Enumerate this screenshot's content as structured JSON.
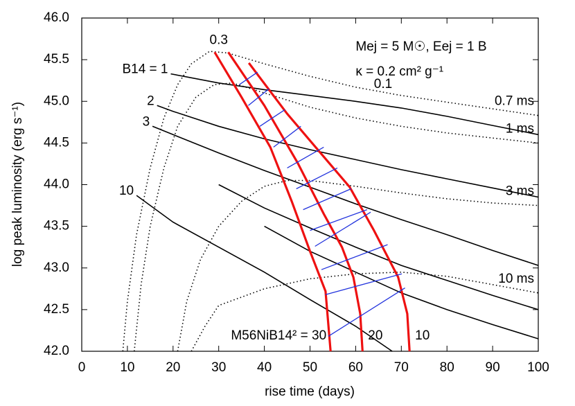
{
  "chart_data": {
    "type": "line",
    "xlabel": "rise time (days)",
    "ylabel": "log peak luminosity (erg s⁻¹)",
    "xlim": [
      0,
      100
    ],
    "ylim": [
      42,
      46
    ],
    "xticks": [
      0,
      10,
      20,
      30,
      40,
      50,
      60,
      70,
      80,
      90,
      100
    ],
    "yticks": [
      {
        "value": 42,
        "label": "42.0"
      },
      42.5,
      {
        "value": 43,
        "label": "43.0"
      },
      43.5,
      {
        "value": 44,
        "label": "44.0"
      },
      44.5,
      {
        "value": 45,
        "label": "45.0"
      },
      45.5,
      {
        "value": 46,
        "label": "46.0"
      }
    ],
    "grid": false,
    "annotations": [
      {
        "text": "Mej = 5 M☉, Eej = 1 B",
        "x": 60,
        "y": 45.65
      },
      {
        "text": "κ = 0.2 cm² g⁻¹",
        "x": 60,
        "y": 45.35
      },
      {
        "text": "0.3",
        "x": 28,
        "y": 45.73
      },
      {
        "text": "0.1",
        "x": 64,
        "y": 45.2
      }
    ],
    "series": [
      {
        "name": "B14 = 1",
        "color": "#000000",
        "style": "solid",
        "x": [
          19.5,
          30,
          40,
          50,
          60,
          70,
          80,
          90,
          100
        ],
        "values": [
          45.33,
          45.22,
          45.14,
          45.07,
          45.0,
          44.92,
          44.82,
          44.71,
          44.6
        ]
      },
      {
        "name": "2",
        "color": "#000000",
        "style": "solid",
        "x": [
          16.5,
          20,
          30,
          40,
          50,
          60,
          70,
          80,
          90,
          100
        ],
        "values": [
          44.95,
          44.88,
          44.7,
          44.55,
          44.42,
          44.3,
          44.18,
          44.07,
          43.96,
          43.85
        ]
      },
      {
        "name": "3",
        "color": "#000000",
        "style": "solid",
        "x": [
          15.5,
          20,
          30,
          40,
          50,
          60,
          70,
          80,
          90,
          100
        ],
        "values": [
          44.7,
          44.6,
          44.38,
          44.17,
          43.97,
          43.77,
          43.58,
          43.4,
          43.21,
          43.03
        ]
      },
      {
        "color": "#000000",
        "style": "solid",
        "x": [
          30,
          40,
          50,
          60,
          70,
          80,
          90,
          100
        ],
        "values": [
          44.0,
          43.72,
          43.48,
          43.25,
          43.03,
          42.85,
          42.67,
          42.5
        ]
      },
      {
        "color": "#000000",
        "style": "solid",
        "x": [
          40,
          50,
          60,
          70,
          80,
          90,
          100
        ],
        "values": [
          43.5,
          43.2,
          42.95,
          42.7,
          42.5,
          42.32,
          42.15
        ]
      },
      {
        "name": "10",
        "color": "#000000",
        "style": "solid",
        "x": [
          12,
          20,
          30,
          40,
          50,
          60,
          68
        ],
        "values": [
          43.87,
          43.55,
          43.25,
          42.95,
          42.62,
          42.3,
          42.0
        ]
      },
      {
        "name": "0.7 ms",
        "color": "#000000",
        "style": "dotted",
        "x": [
          9,
          10,
          12,
          15,
          18,
          21,
          24,
          28,
          32,
          40,
          50,
          60,
          70,
          80,
          90,
          100
        ],
        "values": [
          42,
          42.6,
          43.4,
          44.2,
          44.8,
          45.2,
          45.45,
          45.6,
          45.58,
          45.45,
          45.3,
          45.17,
          45.07,
          44.99,
          44.91,
          44.83
        ]
      },
      {
        "name": "1 ms",
        "color": "#000000",
        "style": "dotted",
        "x": [
          11.5,
          13,
          15,
          18,
          21,
          25,
          29,
          33,
          40,
          50,
          60,
          70,
          80,
          90,
          100
        ],
        "values": [
          42,
          42.8,
          43.5,
          44.2,
          44.7,
          45.05,
          45.2,
          45.22,
          45.1,
          44.93,
          44.8,
          44.7,
          44.62,
          44.56,
          44.5
        ]
      },
      {
        "name": "3 ms",
        "color": "#000000",
        "style": "dotted",
        "x": [
          21,
          23,
          26,
          30,
          35,
          40,
          45,
          50,
          60,
          70,
          80,
          90,
          100
        ],
        "values": [
          42,
          42.6,
          43.1,
          43.5,
          43.8,
          43.98,
          44.05,
          44.05,
          43.98,
          43.9,
          43.83,
          43.78,
          43.75
        ]
      },
      {
        "name": "10 ms",
        "color": "#000000",
        "style": "dotted",
        "x": [
          24,
          27,
          30,
          40,
          50,
          60,
          70,
          80,
          90,
          100
        ],
        "values": [
          42.0,
          42.3,
          42.55,
          42.75,
          42.87,
          42.93,
          42.95,
          42.9,
          42.8,
          42.7
        ]
      },
      {
        "name": "M56NiB14² = 30",
        "color": "#ee1111",
        "style": "thick",
        "x": [
          29.1,
          35,
          41.3,
          46,
          50,
          53.4,
          54.5
        ],
        "values": [
          45.59,
          45.05,
          44.45,
          43.8,
          43.2,
          42.72,
          42.0
        ]
      },
      {
        "name": "20",
        "color": "#ee1111",
        "style": "thick",
        "x": [
          32.1,
          40,
          47.3,
          53,
          57,
          59.5,
          61,
          61.5
        ],
        "values": [
          45.59,
          44.95,
          44.26,
          43.65,
          43.25,
          42.89,
          42.45,
          42.0
        ]
      },
      {
        "name": "10",
        "color": "#ee1111",
        "style": "thick",
        "x": [
          36.6,
          45,
          52,
          58.7,
          64,
          69.3,
          71.3,
          71.8
        ],
        "values": [
          45.46,
          44.85,
          44.4,
          43.97,
          43.45,
          42.89,
          42.45,
          42.0
        ]
      },
      {
        "color": "#2233dd",
        "style": "thin",
        "x": [
          34.5,
          38.5,
          null,
          36.5,
          41,
          null,
          39,
          44.5,
          null,
          42,
          48,
          null,
          45,
          53,
          null,
          47,
          56,
          null,
          48.5,
          59,
          null,
          50,
          62.5,
          null,
          51.1,
          63.3,
          null,
          52.5,
          67,
          null,
          53.4,
          70.1,
          null,
          54,
          70.8
        ],
        "values": [
          45.2,
          45.35,
          null,
          44.95,
          45.15,
          null,
          44.7,
          44.9,
          null,
          44.45,
          44.7,
          null,
          44.2,
          44.45,
          null,
          43.95,
          44.2,
          null,
          43.7,
          43.95,
          null,
          43.45,
          43.7,
          null,
          43.26,
          43.67,
          null,
          42.98,
          43.28,
          null,
          42.68,
          42.93,
          null,
          42.18,
          42.76
        ]
      }
    ]
  }
}
